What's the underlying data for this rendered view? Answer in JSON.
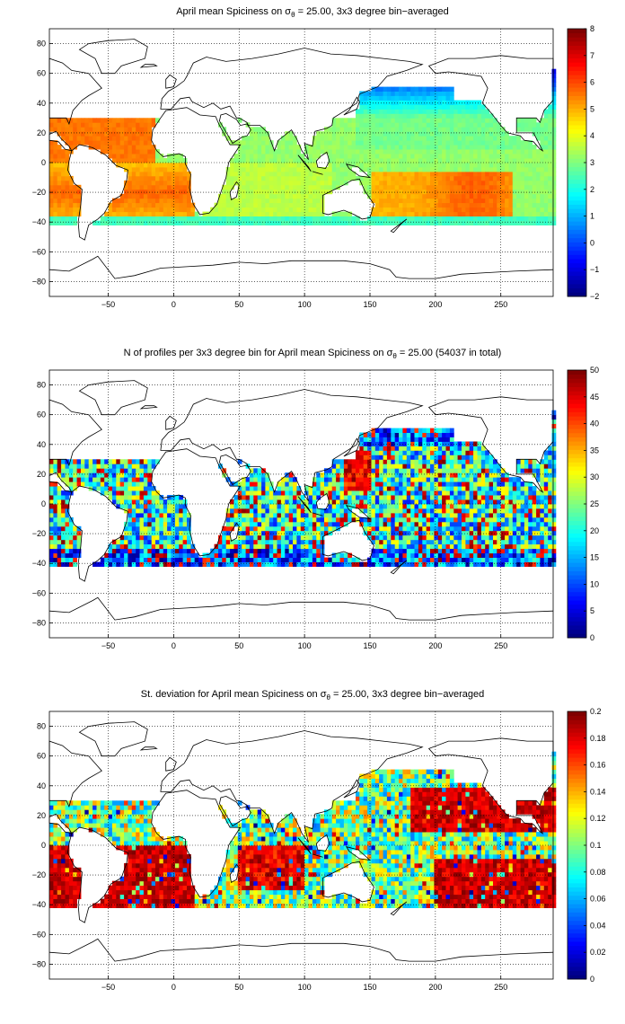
{
  "colors": {
    "frame": "#000000",
    "grid": "#000000",
    "land": "#ffffff",
    "coast": "#000000"
  },
  "colormap": "jet",
  "panels": [
    {
      "name": "mean-spiciness-panel",
      "title": {
        "pre": "April mean Spiciness on ",
        "sym": "σ",
        "sub": "θ",
        "post": " = 25.00, 3x3 degree bin−averaged"
      },
      "colorbar": {
        "min": -2,
        "max": 8,
        "ticks": [
          "8",
          "7",
          "6",
          "5",
          "4",
          "3",
          "2",
          "1",
          "0",
          "−1",
          "−2"
        ]
      },
      "field": "mean"
    },
    {
      "name": "profile-count-panel",
      "title": {
        "pre": "N of profiles per 3x3 degree bin for April mean Spiciness on ",
        "sym": "σ",
        "sub": "θ",
        "post": " = 25.00 (54037 in total)"
      },
      "colorbar": {
        "min": 0,
        "max": 50,
        "ticks": [
          "50",
          "45",
          "40",
          "35",
          "30",
          "25",
          "20",
          "15",
          "10",
          "5",
          "0"
        ]
      },
      "field": "count"
    },
    {
      "name": "std-deviation-panel",
      "title": {
        "pre": "St. deviation for April mean Spiciness on ",
        "sym": "σ",
        "sub": "θ",
        "post": " = 25.00, 3x3 degree bin−averaged"
      },
      "colorbar": {
        "min": 0,
        "max": 0.2,
        "ticks": [
          "0.2",
          "0.18",
          "0.16",
          "0.14",
          "0.12",
          "0.1",
          "0.08",
          "0.06",
          "0.04",
          "0.02",
          "0"
        ]
      },
      "field": "std"
    }
  ],
  "axes": {
    "x_range": [
      -95,
      290
    ],
    "y_range": [
      -90,
      90
    ],
    "x_ticks": [
      "−50",
      "0",
      "50",
      "100",
      "150",
      "200",
      "250"
    ],
    "x_tick_values": [
      -50,
      0,
      50,
      100,
      150,
      200,
      250
    ],
    "y_ticks": [
      "80",
      "60",
      "40",
      "20",
      "0",
      "−20",
      "−40",
      "−60",
      "−80"
    ],
    "y_tick_values": [
      80,
      60,
      40,
      20,
      0,
      -20,
      -40,
      -60,
      -80
    ]
  }
}
